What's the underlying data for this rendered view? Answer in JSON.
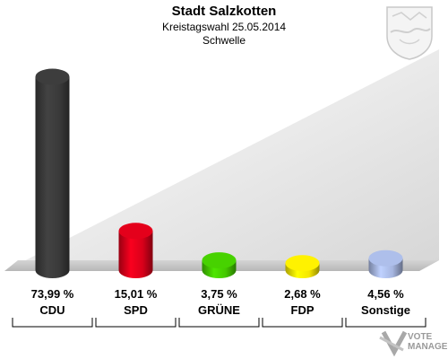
{
  "header": {
    "title": "Stadt Salzkotten",
    "subtitle": "Kreistagswahl 25.05.2014",
    "area": "Schwelle"
  },
  "watermark": {
    "line1": "VOTE",
    "line2": "MANAGER"
  },
  "chart_data": {
    "type": "bar",
    "categories": [
      "CDU",
      "SPD",
      "GRÜNE",
      "FDP",
      "Sonstige"
    ],
    "values": [
      73.99,
      15.01,
      3.75,
      2.68,
      4.56
    ],
    "value_labels": [
      "73,99 %",
      "15,01 %",
      "3,75 %",
      "2,68 %",
      "4,56 %"
    ],
    "colors": [
      "#3a3a3a",
      "#d9001a",
      "#44c800",
      "#f5e600",
      "#a6b6e0"
    ],
    "ylim": [
      0,
      80
    ],
    "grid": false,
    "legend": "none"
  }
}
